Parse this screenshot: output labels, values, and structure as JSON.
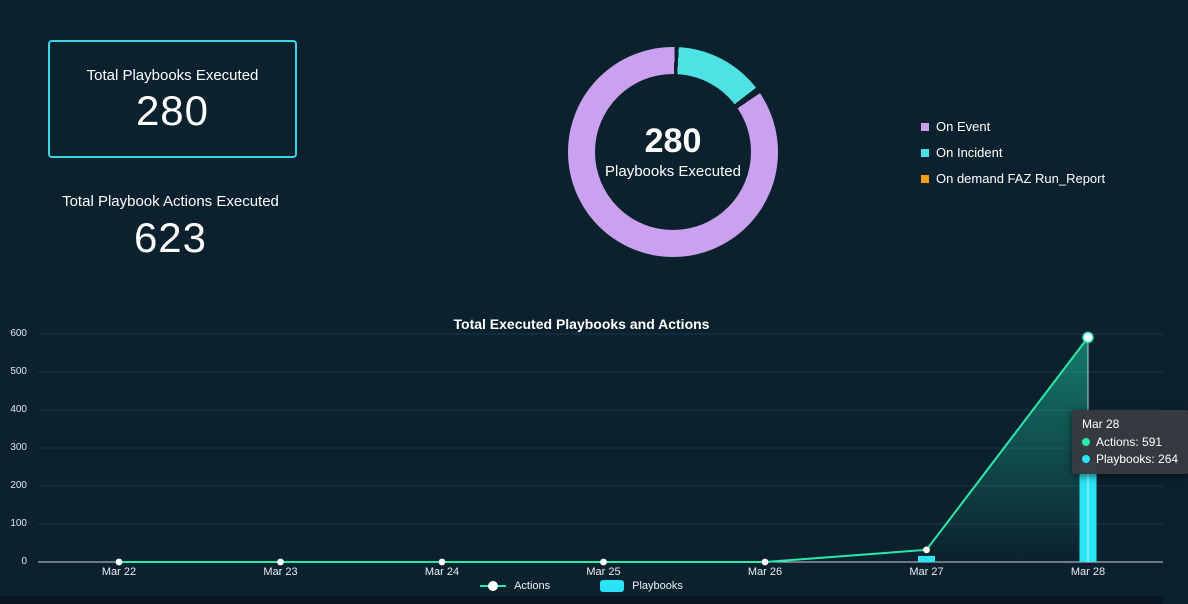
{
  "colors": {
    "background": "#0c212e",
    "card_border": "#3bd6e6",
    "grid": "#17364c",
    "axis": "#ccd2d6",
    "on_event": "#c9a1ee",
    "on_incident": "#4ee2e4",
    "on_demand": "#f0a30a",
    "actions_line": "#2be9a9",
    "playbooks_bar": "#2be3f4",
    "tooltip_bg": "#363b41"
  },
  "stats": {
    "playbooks": {
      "label": "Total Playbooks Executed",
      "value": "280"
    },
    "actions": {
      "label": "Total Playbook Actions Executed",
      "value": "623"
    }
  },
  "donut": {
    "center_value": "280",
    "center_label": "Playbooks Executed"
  },
  "tooltip": {
    "title": "Mar 28",
    "rows": [
      {
        "label": "Actions",
        "value": "591",
        "color": "#2be9a9"
      },
      {
        "label": "Playbooks",
        "value": "264",
        "color": "#2be3f4"
      }
    ]
  },
  "chart_data": [
    {
      "type": "pie",
      "subtype": "donut",
      "title": "Playbooks Executed",
      "center_value": 280,
      "labels": [
        "On Event",
        "On Incident",
        "On demand FAZ Run_Report"
      ],
      "values": [
        239,
        40,
        1
      ],
      "colors": [
        "#c9a1ee",
        "#4ee2e4",
        "#f0a30a"
      ],
      "draw_order": [
        1,
        2,
        0
      ],
      "start_angle_deg": 2,
      "legend_position": "right"
    },
    {
      "type": "line",
      "combo": true,
      "title": "Total Executed Playbooks and Actions",
      "categories": [
        "Mar 22",
        "Mar 23",
        "Mar 24",
        "Mar 25",
        "Mar 26",
        "Mar 27",
        "Mar 28"
      ],
      "series": [
        {
          "name": "Actions",
          "type": "line",
          "color": "#2be9a9",
          "values": [
            0,
            0,
            0,
            0,
            0,
            32,
            591
          ]
        },
        {
          "name": "Playbooks",
          "type": "bar",
          "color": "#2be3f4",
          "values": [
            0,
            0,
            0,
            0,
            0,
            16,
            264
          ]
        }
      ],
      "ylim": [
        0,
        600
      ],
      "yticks": [
        0,
        100,
        200,
        300,
        400,
        500,
        600
      ],
      "grid": "horizontal",
      "legend_position": "bottom",
      "hover": {
        "category": "Mar 28",
        "tooltip": {
          "Actions": 591,
          "Playbooks": 264
        }
      }
    }
  ]
}
